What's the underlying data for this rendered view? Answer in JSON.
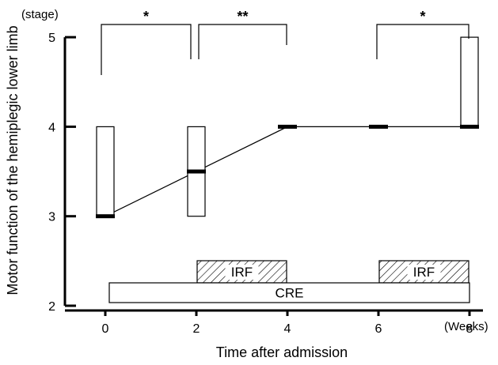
{
  "chart_data": {
    "type": "box",
    "xlabel": "Time after admission",
    "ylabel": "Motor function of the hemiplegic lower limb",
    "x_unit": "(Weeks)",
    "y_unit": "(stage)",
    "xlim": [
      -1,
      8.5
    ],
    "ylim": [
      2,
      5
    ],
    "xticks": [
      0,
      2,
      4,
      6,
      8
    ],
    "yticks": [
      2,
      3,
      4,
      5
    ],
    "boxes": [
      {
        "x": 0,
        "low": 3,
        "high": 4,
        "median": 3
      },
      {
        "x": 2,
        "low": 3,
        "high": 4,
        "median": 3.5
      },
      {
        "x": 4,
        "low": 4,
        "high": 4,
        "median": 4
      },
      {
        "x": 6,
        "low": 4,
        "high": 4,
        "median": 4
      },
      {
        "x": 8,
        "low": 4,
        "high": 5,
        "median": 4
      }
    ],
    "median_line": {
      "x": [
        0,
        2,
        4,
        6,
        8
      ],
      "y": [
        3,
        3.5,
        4,
        4,
        4
      ]
    },
    "significance": [
      {
        "from": 0,
        "to": 2,
        "label": "*"
      },
      {
        "from": 2,
        "to": 4,
        "label": "**"
      },
      {
        "from": 6,
        "to": 8,
        "label": "*"
      }
    ],
    "periods": [
      {
        "label": "IRF",
        "start": 2,
        "end": 4,
        "style": "hatched"
      },
      {
        "label": "IRF",
        "start": 6,
        "end": 8,
        "style": "hatched"
      },
      {
        "label": "CRE",
        "start": 0,
        "end": 8,
        "style": "open"
      }
    ],
    "grid": false,
    "legend": "none"
  }
}
